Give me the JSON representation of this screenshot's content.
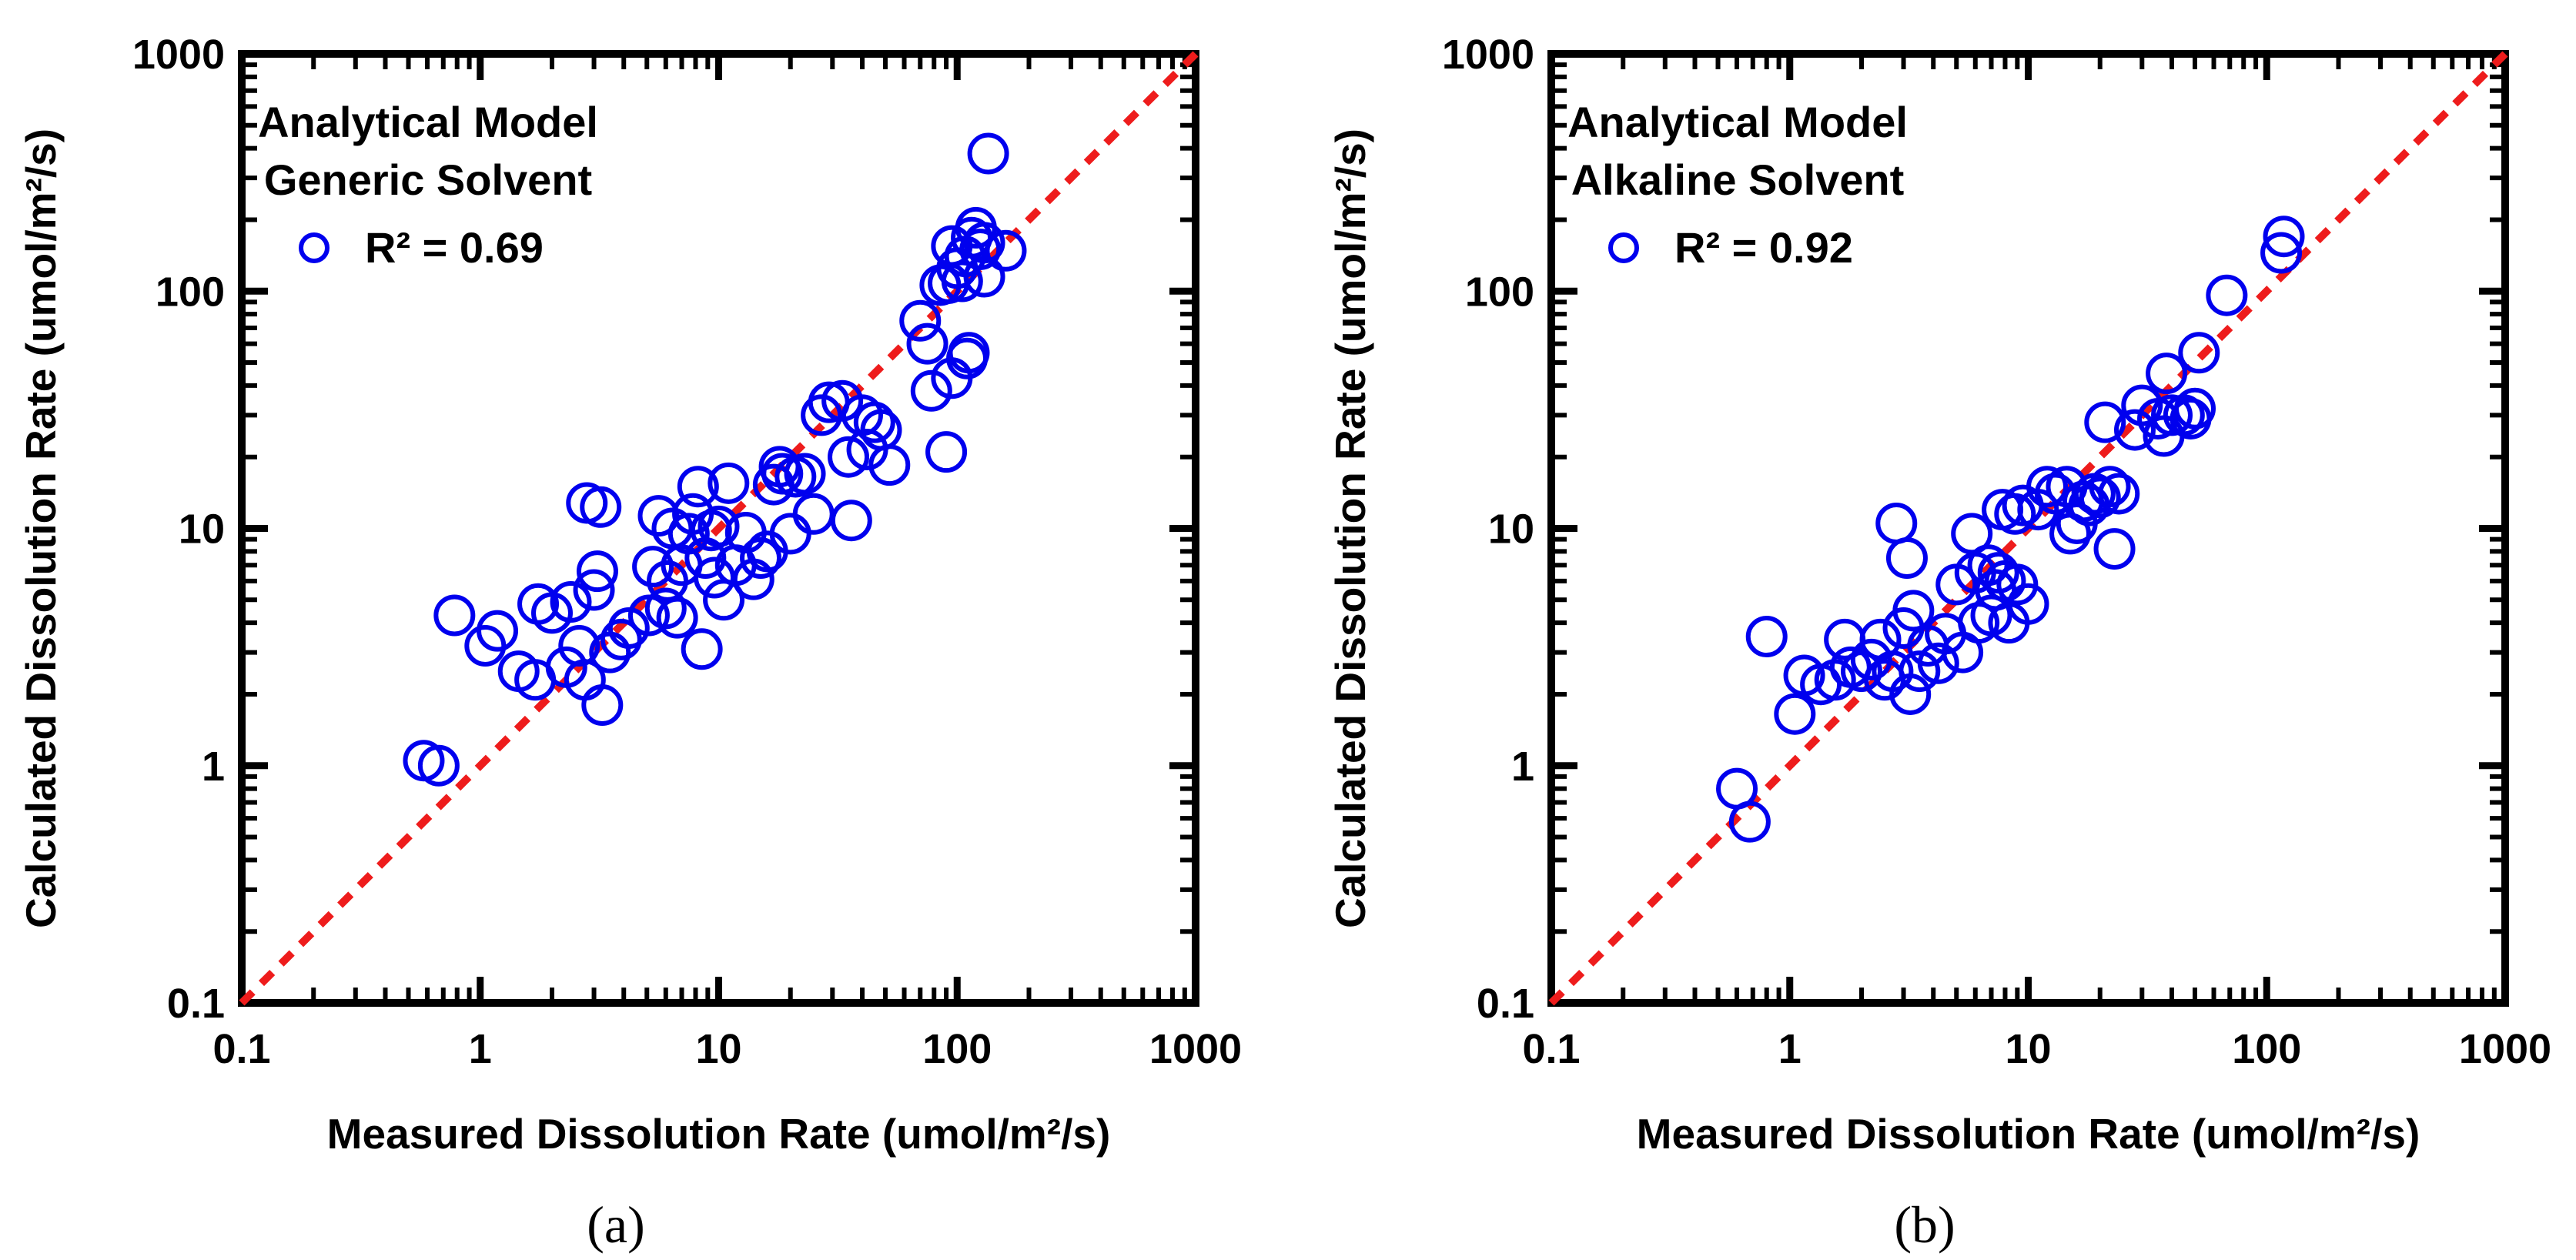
{
  "chart_data": [
    {
      "type": "scatter",
      "panel_label": "(a)",
      "scale": "log-log",
      "xlim": [
        0.1,
        1000
      ],
      "ylim": [
        0.1,
        1000
      ],
      "xlabel": "Measured Dissolution Rate (umol/m²/s)",
      "ylabel": "Calculated Dissolution Rate (umol/m²/s)",
      "x_ticks": [
        "0.1",
        "1",
        "10",
        "100",
        "1000"
      ],
      "y_ticks": [
        "0.1",
        "1",
        "10",
        "100",
        "1000"
      ],
      "legend": {
        "title_lines": [
          "Analytical Model",
          "Generic Solvent"
        ],
        "entry": "R² = 0.69",
        "placement": "top-left"
      },
      "reference_line": {
        "name": "1:1 line",
        "from": [
          0.1,
          0.1
        ],
        "to": [
          1000,
          1000
        ]
      },
      "series": [
        {
          "name": "Generic Solvent",
          "points": [
            [
              0.58,
              1.05
            ],
            [
              0.67,
              1.0
            ],
            [
              0.78,
              4.3
            ],
            [
              1.05,
              3.2
            ],
            [
              1.18,
              3.7
            ],
            [
              1.45,
              2.5
            ],
            [
              1.7,
              2.3
            ],
            [
              1.75,
              4.8
            ],
            [
              2.0,
              4.4
            ],
            [
              2.3,
              2.6
            ],
            [
              2.4,
              4.9
            ],
            [
              2.6,
              3.2
            ],
            [
              2.75,
              2.3
            ],
            [
              2.8,
              12.8
            ],
            [
              3.0,
              5.5
            ],
            [
              3.2,
              12.3
            ],
            [
              3.1,
              6.6
            ],
            [
              3.25,
              1.8
            ],
            [
              3.5,
              3.0
            ],
            [
              3.9,
              3.4
            ],
            [
              4.2,
              3.8
            ],
            [
              5.1,
              4.3
            ],
            [
              5.3,
              6.9
            ],
            [
              5.6,
              11.3
            ],
            [
              6.0,
              4.6
            ],
            [
              6.1,
              6.0
            ],
            [
              6.4,
              10.0
            ],
            [
              6.7,
              4.2
            ],
            [
              7.0,
              7.0
            ],
            [
              7.5,
              9.5
            ],
            [
              7.8,
              11.5
            ],
            [
              8.2,
              15.0
            ],
            [
              8.5,
              3.1
            ],
            [
              8.8,
              7.5
            ],
            [
              9.3,
              9.8
            ],
            [
              9.6,
              6.2
            ],
            [
              10.0,
              10.2
            ],
            [
              10.5,
              5.0
            ],
            [
              11.0,
              15.5
            ],
            [
              11.8,
              7.0
            ],
            [
              13.0,
              9.6
            ],
            [
              14.0,
              6.1
            ],
            [
              15.0,
              7.5
            ],
            [
              16.0,
              8.0
            ],
            [
              17.0,
              15.3
            ],
            [
              18.0,
              18.2
            ],
            [
              18.5,
              17.0
            ],
            [
              20.0,
              9.5
            ],
            [
              21.0,
              16.5
            ],
            [
              23.0,
              17.0
            ],
            [
              25.0,
              11.5
            ],
            [
              27.0,
              30.0
            ],
            [
              29.0,
              34.0
            ],
            [
              33.0,
              34.5
            ],
            [
              35.0,
              20.0
            ],
            [
              36.0,
              10.8
            ],
            [
              40.0,
              30.0
            ],
            [
              42.0,
              21.5
            ],
            [
              45.0,
              28.0
            ],
            [
              48.0,
              26.0
            ],
            [
              52.0,
              18.5
            ],
            [
              70.0,
              75.0
            ],
            [
              75.0,
              60.0
            ],
            [
              78.0,
              38.0
            ],
            [
              85.0,
              106.0
            ],
            [
              90.0,
              21.0
            ],
            [
              92.0,
              108.0
            ],
            [
              95.0,
              43.0
            ],
            [
              95.0,
              155.0
            ],
            [
              100.0,
              125.0
            ],
            [
              105.0,
              110.0
            ],
            [
              108.0,
              140.0
            ],
            [
              110.0,
              52.0
            ],
            [
              112.0,
              55.0
            ],
            [
              115.0,
              168.0
            ],
            [
              120.0,
              185.0
            ],
            [
              125.0,
              150.0
            ],
            [
              130.0,
              160.0
            ],
            [
              130.0,
              115.0
            ],
            [
              135.0,
              380.0
            ],
            [
              160.0,
              148.0
            ]
          ]
        }
      ]
    },
    {
      "type": "scatter",
      "panel_label": "(b)",
      "scale": "log-log",
      "xlim": [
        0.1,
        1000
      ],
      "ylim": [
        0.1,
        1000
      ],
      "xlabel": "Measured Dissolution Rate (umol/m²/s)",
      "ylabel": "Calculated Dissolution Rate (umol/m²/s)",
      "x_ticks": [
        "0.1",
        "1",
        "10",
        "100",
        "1000"
      ],
      "y_ticks": [
        "0.1",
        "1",
        "10",
        "100",
        "1000"
      ],
      "legend": {
        "title_lines": [
          "Analytical Model",
          "Alkaline Solvent"
        ],
        "entry": "R² = 0.92",
        "placement": "top-left"
      },
      "reference_line": {
        "name": "1:1 line",
        "from": [
          0.1,
          0.1
        ],
        "to": [
          1000,
          1000
        ]
      },
      "series": [
        {
          "name": "Alkaline Solvent",
          "points": [
            [
              0.6,
              0.8
            ],
            [
              0.68,
              0.58
            ],
            [
              0.8,
              3.5
            ],
            [
              1.05,
              1.65
            ],
            [
              1.15,
              2.4
            ],
            [
              1.35,
              2.2
            ],
            [
              1.55,
              2.3
            ],
            [
              1.7,
              3.4
            ],
            [
              1.8,
              2.6
            ],
            [
              2.0,
              2.5
            ],
            [
              2.2,
              2.8
            ],
            [
              2.4,
              3.4
            ],
            [
              2.5,
              2.3
            ],
            [
              2.7,
              2.5
            ],
            [
              2.8,
              10.5
            ],
            [
              3.0,
              3.8
            ],
            [
              3.1,
              7.5
            ],
            [
              3.2,
              2.0
            ],
            [
              3.3,
              4.5
            ],
            [
              3.5,
              2.5
            ],
            [
              3.8,
              3.2
            ],
            [
              4.2,
              2.7
            ],
            [
              4.5,
              3.6
            ],
            [
              5.0,
              5.8
            ],
            [
              5.3,
              3.0
            ],
            [
              5.8,
              9.5
            ],
            [
              6.0,
              6.5
            ],
            [
              6.2,
              4.0
            ],
            [
              6.8,
              7.0
            ],
            [
              7.0,
              4.3
            ],
            [
              7.3,
              5.5
            ],
            [
              7.5,
              6.5
            ],
            [
              7.8,
              12.0
            ],
            [
              8.0,
              6.0
            ],
            [
              8.3,
              4.0
            ],
            [
              8.8,
              11.5
            ],
            [
              9.0,
              5.8
            ],
            [
              9.5,
              12.5
            ],
            [
              10.0,
              4.8
            ],
            [
              11.0,
              12.0
            ],
            [
              12.0,
              15.0
            ],
            [
              13.0,
              14.0
            ],
            [
              14.5,
              15.0
            ],
            [
              15.0,
              9.5
            ],
            [
              16.0,
              10.5
            ],
            [
              17.0,
              13.0
            ],
            [
              18.0,
              12.5
            ],
            [
              19.0,
              14.0
            ],
            [
              20.0,
              13.5
            ],
            [
              21.0,
              28.0
            ],
            [
              22.0,
              15.0
            ],
            [
              23.0,
              8.2
            ],
            [
              24.0,
              14.0
            ],
            [
              28.0,
              26.0
            ],
            [
              30.0,
              33.0
            ],
            [
              35.0,
              29.0
            ],
            [
              37.0,
              24.5
            ],
            [
              38.0,
              45.0
            ],
            [
              40.0,
              30.0
            ],
            [
              45.0,
              30.0
            ],
            [
              48.0,
              29.0
            ],
            [
              50.0,
              32.0
            ],
            [
              52.0,
              55.0
            ],
            [
              68.0,
              96.0
            ],
            [
              115.0,
              145.0
            ],
            [
              118.0,
              170.0
            ]
          ]
        }
      ]
    }
  ],
  "colors": {
    "marker": "#0000ee",
    "reference_line": "#ee1c1c",
    "axes": "#000000"
  }
}
